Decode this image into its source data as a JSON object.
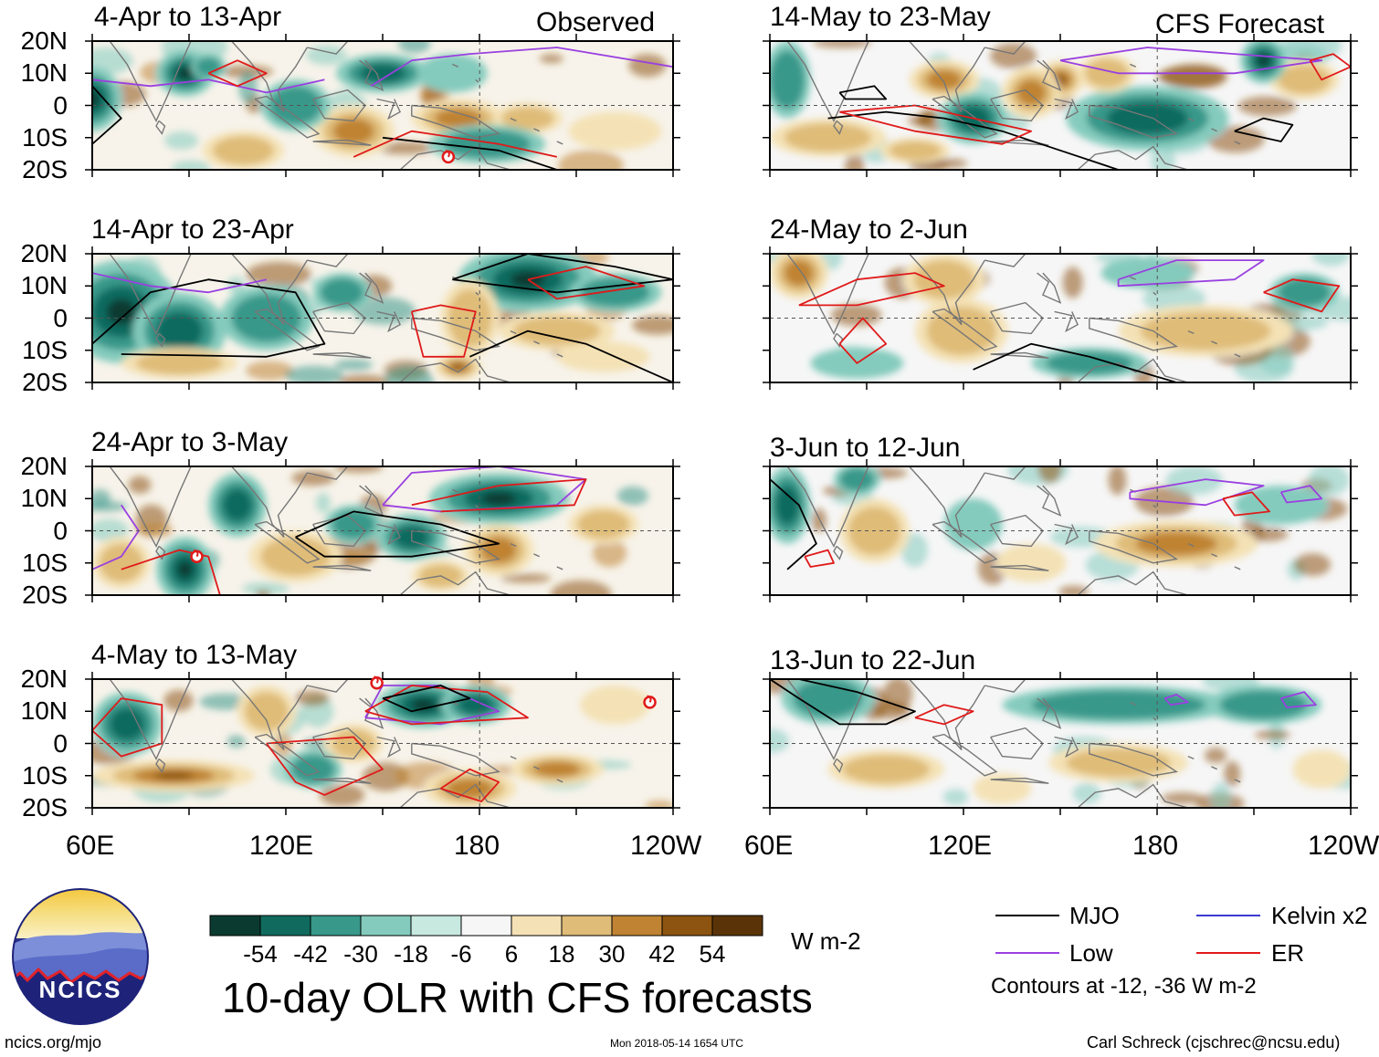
{
  "figure": {
    "title": "10-day OLR with CFS forecasts",
    "website": "ncics.org/mjo",
    "timestamp": "Mon 2018-05-14 1654 UTC",
    "author": "Carl Schreck (cjschrec@ncsu.edu)",
    "logo_text": "NCICS"
  },
  "columns": [
    {
      "label": "Observed",
      "panels": [
        "4-Apr to 13-Apr",
        "14-Apr to 23-Apr",
        "24-Apr to 3-May",
        "4-May to 13-May"
      ]
    },
    {
      "label": "CFS Forecast",
      "panels": [
        "14-May to 23-May",
        "24-May to 2-Jun",
        "3-Jun to 12-Jun",
        "13-Jun to 22-Jun"
      ]
    }
  ],
  "axes": {
    "lat_labels": [
      "20N",
      "10N",
      "0",
      "10S",
      "20S"
    ],
    "lon_labels": [
      "60E",
      "120E",
      "180",
      "120W"
    ]
  },
  "colorbar": {
    "labels": [
      "-54",
      "-42",
      "-30",
      "-18",
      "-6",
      "6",
      "18",
      "30",
      "42",
      "54"
    ],
    "colors": [
      "#0b3b30",
      "#106b5e",
      "#38988a",
      "#84cbbd",
      "#c7e9df",
      "#f6f6f6",
      "#f4e2b6",
      "#dfbc78",
      "#bf8333",
      "#8c5410",
      "#5a3408"
    ],
    "units": "W m-2"
  },
  "legend": {
    "items": [
      {
        "label": "MJO",
        "color": "#000000"
      },
      {
        "label": "Kelvin x2",
        "color": "#3b3bd0"
      },
      {
        "label": "Low",
        "color": "#9a40e0"
      },
      {
        "label": "ER",
        "color": "#e01a1a"
      }
    ],
    "note": "Contours at -12, -36 W m-2"
  }
}
